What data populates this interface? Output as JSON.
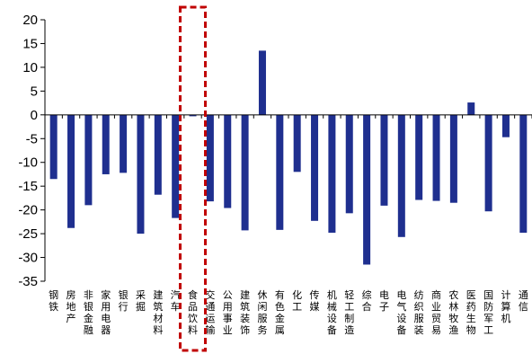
{
  "chart_data": {
    "type": "bar",
    "categories": [
      "钢铁",
      "房地产",
      "非银金融",
      "家用电器",
      "银行",
      "采掘",
      "建筑材料",
      "汽车",
      "食品饮料",
      "交通运输",
      "公用事业",
      "建筑装饰",
      "休闲服务",
      "有色金属",
      "化工",
      "传媒",
      "机械设备",
      "轻工制造",
      "综合",
      "电子",
      "电气设备",
      "纺织服装",
      "商业贸易",
      "农林牧渔",
      "医药生物",
      "国防军工",
      "计算机",
      "通信"
    ],
    "values": [
      -13.5,
      -23.8,
      -19.0,
      -12.5,
      -12.2,
      -25.0,
      -16.8,
      -21.7,
      -0.3,
      -18.2,
      -19.6,
      -24.3,
      13.5,
      -24.2,
      -12.0,
      -22.3,
      -24.8,
      -20.7,
      -31.5,
      -19.1,
      -25.7,
      -17.9,
      -18.1,
      -18.5,
      2.6,
      -20.3,
      -4.7,
      -24.8
    ],
    "ylim": [
      -35,
      20
    ],
    "yticks": [
      20,
      15,
      10,
      5,
      0,
      -5,
      -10,
      -15,
      -20,
      -25,
      -30,
      -35
    ],
    "highlight_category": "食品饮料",
    "bar_color": "#1f2f8f",
    "highlight_color": "#c00000",
    "grid": false
  }
}
